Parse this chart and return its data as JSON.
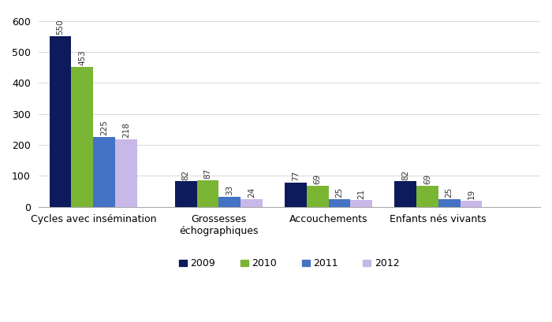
{
  "categories": [
    "Cycles avec insémination",
    "Grossesses\néchographiques",
    "Accouchements",
    "Enfants nés vivants"
  ],
  "years": [
    "2009",
    "2010",
    "2011",
    "2012"
  ],
  "values": {
    "2009": [
      550,
      82,
      77,
      82
    ],
    "2010": [
      453,
      87,
      69,
      69
    ],
    "2011": [
      225,
      33,
      25,
      25
    ],
    "2012": [
      218,
      24,
      21,
      19
    ]
  },
  "colors": {
    "2009": "#0d1a5c",
    "2010": "#7ab534",
    "2011": "#4472c4",
    "2012": "#c8b8e8"
  },
  "ylim": [
    0,
    630
  ],
  "yticks": [
    0,
    100,
    200,
    300,
    400,
    500,
    600
  ],
  "bar_width": 0.14,
  "tick_fontsize": 9,
  "legend_fontsize": 9,
  "value_fontsize": 7.5,
  "background_color": "#ffffff",
  "group_positions": [
    0.35,
    1.15,
    1.85,
    2.55
  ]
}
